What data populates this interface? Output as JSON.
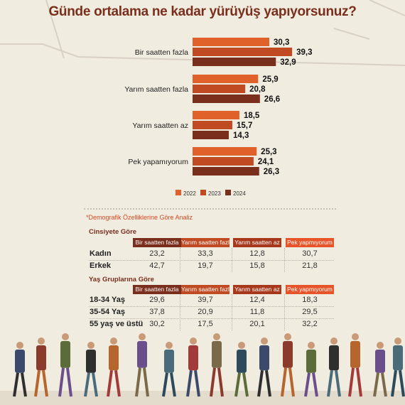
{
  "title": "Günde ortalama ne kadar yürüyüş yapıyorsunuz?",
  "chart_data": {
    "type": "bar",
    "orientation": "horizontal",
    "categories": [
      "Bir saatten fazla",
      "Yarım saatten fazla",
      "Yarım saatten az",
      "Pek yapamıyorum"
    ],
    "series": [
      {
        "name": "2022",
        "values": [
          30.3,
          25.9,
          18.5,
          25.3
        ]
      },
      {
        "name": "2023",
        "values": [
          39.3,
          20.8,
          15.7,
          24.1
        ]
      },
      {
        "name": "2024",
        "values": [
          32.9,
          26.6,
          14.3,
          26.3
        ]
      }
    ],
    "value_labels": [
      [
        "30,3",
        "39,3",
        "32,9"
      ],
      [
        "25,9",
        "20,8",
        "26,6"
      ],
      [
        "18,5",
        "15,7",
        "14,3"
      ],
      [
        "25,3",
        "24,1",
        "26,3"
      ]
    ],
    "xlim": [
      0,
      40
    ],
    "legend_position": "bottom-center",
    "grid": false
  },
  "colors": {
    "s2022": "#e0622a",
    "s2023": "#c04a22",
    "s2024": "#7a2e1c",
    "header": [
      "#7a2e1c",
      "#c04a22",
      "#a8381c",
      "#e8542a"
    ],
    "title": "#7a2e1c"
  },
  "demographics": {
    "note": "*Demografik Özelliklerine Göre Analiz",
    "columns": [
      "Bir saatten fazla",
      "Yarım saatten fazla",
      "Yarım saatten az",
      "Pek yapmıyorum"
    ],
    "gender": {
      "label": "Cinsiyete Göre",
      "rows": [
        {
          "label": "Kadın",
          "values": [
            "23,2",
            "33,3",
            "12,8",
            "30,7"
          ]
        },
        {
          "label": "Erkek",
          "values": [
            "42,7",
            "19,7",
            "15,8",
            "21,8"
          ]
        }
      ]
    },
    "age": {
      "label": "Yaş Gruplarına Göre",
      "rows": [
        {
          "label": "18-34 Yaş",
          "values": [
            "29,6",
            "39,7",
            "12,4",
            "18,3"
          ]
        },
        {
          "label": "35-54 Yaş",
          "values": [
            "37,8",
            "20,9",
            "11,8",
            "29,5"
          ]
        },
        {
          "label": "55 yaş ve üstü",
          "values": [
            "30,2",
            "17,5",
            "20,1",
            "32,2"
          ]
        }
      ]
    }
  }
}
